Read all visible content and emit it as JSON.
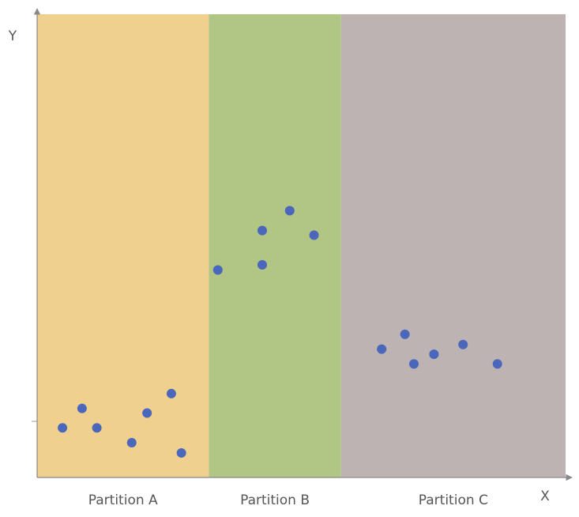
{
  "chart_data": {
    "type": "scatter",
    "xlabel": "X",
    "ylabel": "Y",
    "xlim": [
      0,
      100
    ],
    "ylim": [
      0,
      100
    ],
    "grid": false,
    "partitions": [
      {
        "label": "Partition A",
        "x_start": 0,
        "x_end": 32.5,
        "color": "#f0d08e"
      },
      {
        "label": "Partition B",
        "x_start": 32.5,
        "x_end": 57.5,
        "color": "#b1c585"
      },
      {
        "label": "Partition C",
        "x_start": 57.5,
        "x_end": 100,
        "color": "#bdb3b3"
      }
    ],
    "series": [
      {
        "color": "#4a67bb",
        "points": [
          {
            "x": 4.8,
            "y": 10.7
          },
          {
            "x": 8.5,
            "y": 14.9
          },
          {
            "x": 11.3,
            "y": 10.7
          },
          {
            "x": 17.9,
            "y": 7.5
          },
          {
            "x": 20.8,
            "y": 13.9
          },
          {
            "x": 25.4,
            "y": 18.1
          },
          {
            "x": 27.3,
            "y": 5.3
          },
          {
            "x": 34.2,
            "y": 44.8
          },
          {
            "x": 42.6,
            "y": 45.9
          },
          {
            "x": 42.6,
            "y": 53.3
          },
          {
            "x": 47.8,
            "y": 57.6
          },
          {
            "x": 52.4,
            "y": 52.3
          },
          {
            "x": 65.2,
            "y": 27.7
          },
          {
            "x": 69.6,
            "y": 30.9
          },
          {
            "x": 71.3,
            "y": 24.5
          },
          {
            "x": 75.1,
            "y": 26.6
          },
          {
            "x": 80.6,
            "y": 28.7
          },
          {
            "x": 87.1,
            "y": 24.5
          }
        ]
      }
    ]
  }
}
